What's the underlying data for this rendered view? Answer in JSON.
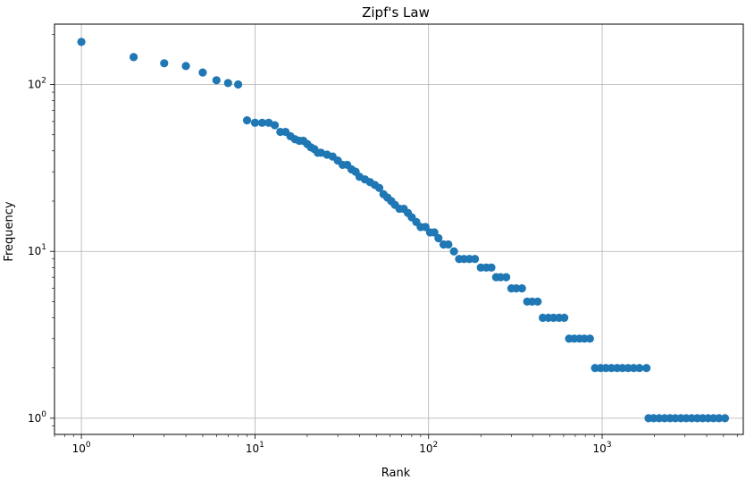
{
  "chart_data": {
    "type": "scatter",
    "title": "Zipf's Law",
    "xlabel": "Rank",
    "ylabel": "Frequency",
    "xscale": "log",
    "yscale": "log",
    "xlim": [
      0.7,
      6500
    ],
    "ylim": [
      0.8,
      230
    ],
    "x_ticks": [
      1,
      10,
      100,
      1000
    ],
    "y_ticks": [
      1,
      10,
      100
    ],
    "grid": true,
    "marker_color": "#1f77b4",
    "points": [
      {
        "x": 1,
        "y": 180
      },
      {
        "x": 2,
        "y": 146
      },
      {
        "x": 3,
        "y": 134
      },
      {
        "x": 4,
        "y": 129
      },
      {
        "x": 5,
        "y": 118
      },
      {
        "x": 6,
        "y": 106
      },
      {
        "x": 7,
        "y": 102
      },
      {
        "x": 8,
        "y": 100
      },
      {
        "x": 9,
        "y": 61
      },
      {
        "x": 10,
        "y": 59
      },
      {
        "x": 11,
        "y": 59
      },
      {
        "x": 12,
        "y": 59
      },
      {
        "x": 13,
        "y": 57
      },
      {
        "x": 14,
        "y": 52
      },
      {
        "x": 15,
        "y": 52
      },
      {
        "x": 16,
        "y": 49
      },
      {
        "x": 17,
        "y": 47
      },
      {
        "x": 18,
        "y": 46
      },
      {
        "x": 19,
        "y": 46
      },
      {
        "x": 20,
        "y": 44
      },
      {
        "x": 21,
        "y": 42
      },
      {
        "x": 22,
        "y": 41
      },
      {
        "x": 23,
        "y": 39
      },
      {
        "x": 24,
        "y": 39
      },
      {
        "x": 26,
        "y": 38
      },
      {
        "x": 28,
        "y": 37
      },
      {
        "x": 30,
        "y": 35
      },
      {
        "x": 32,
        "y": 33
      },
      {
        "x": 34,
        "y": 33
      },
      {
        "x": 36,
        "y": 31
      },
      {
        "x": 38,
        "y": 30
      },
      {
        "x": 40,
        "y": 28
      },
      {
        "x": 43,
        "y": 27
      },
      {
        "x": 46,
        "y": 26
      },
      {
        "x": 49,
        "y": 25
      },
      {
        "x": 52,
        "y": 24
      },
      {
        "x": 55,
        "y": 22
      },
      {
        "x": 58,
        "y": 21
      },
      {
        "x": 61,
        "y": 20
      },
      {
        "x": 64,
        "y": 19
      },
      {
        "x": 68,
        "y": 18
      },
      {
        "x": 72,
        "y": 18
      },
      {
        "x": 76,
        "y": 17
      },
      {
        "x": 80,
        "y": 16
      },
      {
        "x": 85,
        "y": 15
      },
      {
        "x": 90,
        "y": 14
      },
      {
        "x": 96,
        "y": 14
      },
      {
        "x": 102,
        "y": 13
      },
      {
        "x": 108,
        "y": 13
      },
      {
        "x": 114,
        "y": 12
      },
      {
        "x": 122,
        "y": 11
      },
      {
        "x": 130,
        "y": 11
      },
      {
        "x": 140,
        "y": 10
      },
      {
        "x": 150,
        "y": 9
      },
      {
        "x": 160,
        "y": 9
      },
      {
        "x": 172,
        "y": 9
      },
      {
        "x": 185,
        "y": 9
      },
      {
        "x": 200,
        "y": 8
      },
      {
        "x": 215,
        "y": 8
      },
      {
        "x": 230,
        "y": 8
      },
      {
        "x": 245,
        "y": 7
      },
      {
        "x": 260,
        "y": 7
      },
      {
        "x": 280,
        "y": 7
      },
      {
        "x": 300,
        "y": 6
      },
      {
        "x": 320,
        "y": 6
      },
      {
        "x": 345,
        "y": 6
      },
      {
        "x": 370,
        "y": 5
      },
      {
        "x": 395,
        "y": 5
      },
      {
        "x": 425,
        "y": 5
      },
      {
        "x": 455,
        "y": 4
      },
      {
        "x": 490,
        "y": 4
      },
      {
        "x": 525,
        "y": 4
      },
      {
        "x": 565,
        "y": 4
      },
      {
        "x": 605,
        "y": 4
      },
      {
        "x": 645,
        "y": 3
      },
      {
        "x": 690,
        "y": 3
      },
      {
        "x": 740,
        "y": 3
      },
      {
        "x": 790,
        "y": 3
      },
      {
        "x": 850,
        "y": 3
      },
      {
        "x": 910,
        "y": 2
      },
      {
        "x": 980,
        "y": 2
      },
      {
        "x": 1050,
        "y": 2
      },
      {
        "x": 1130,
        "y": 2
      },
      {
        "x": 1220,
        "y": 2
      },
      {
        "x": 1310,
        "y": 2
      },
      {
        "x": 1410,
        "y": 2
      },
      {
        "x": 1520,
        "y": 2
      },
      {
        "x": 1640,
        "y": 2
      },
      {
        "x": 1800,
        "y": 2
      },
      {
        "x": 1850,
        "y": 1
      },
      {
        "x": 1980,
        "y": 1
      },
      {
        "x": 2130,
        "y": 1
      },
      {
        "x": 2290,
        "y": 1
      },
      {
        "x": 2460,
        "y": 1
      },
      {
        "x": 2640,
        "y": 1
      },
      {
        "x": 2840,
        "y": 1
      },
      {
        "x": 3050,
        "y": 1
      },
      {
        "x": 3280,
        "y": 1
      },
      {
        "x": 3530,
        "y": 1
      },
      {
        "x": 3790,
        "y": 1
      },
      {
        "x": 4080,
        "y": 1
      },
      {
        "x": 4380,
        "y": 1
      },
      {
        "x": 4710,
        "y": 1
      },
      {
        "x": 5100,
        "y": 1
      }
    ]
  }
}
